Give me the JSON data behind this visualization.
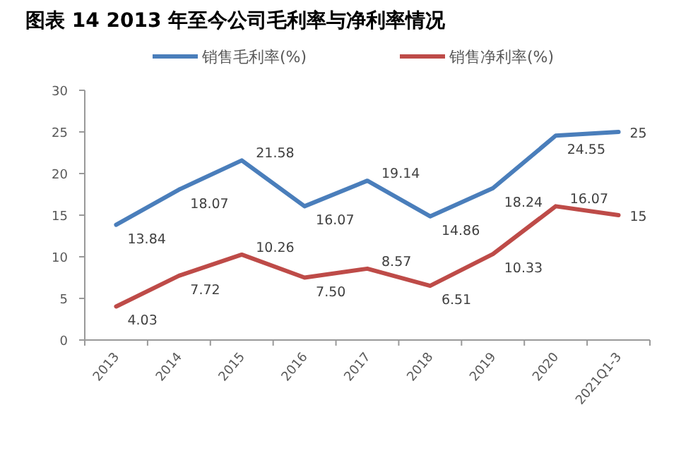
{
  "chart_data": {
    "type": "line",
    "title": "图表 14 2013 年至今公司毛利率与净利率情况",
    "categories": [
      "2013",
      "2014",
      "2015",
      "2016",
      "2017",
      "2018",
      "2019",
      "2020",
      "2021Q1-3"
    ],
    "series": [
      {
        "name": "销售毛利率(%)",
        "color": "#4a7ebb",
        "values": [
          13.84,
          18.07,
          21.58,
          16.07,
          19.14,
          14.86,
          18.24,
          24.55,
          25
        ],
        "value_labels": [
          "13.84",
          "18.07",
          "21.58",
          "16.07",
          "19.14",
          "14.86",
          "18.24",
          "24.55",
          "25"
        ]
      },
      {
        "name": "销售净利率(%)",
        "color": "#be4b48",
        "values": [
          4.03,
          7.72,
          10.26,
          7.5,
          8.57,
          6.51,
          10.33,
          16.07,
          15
        ],
        "value_labels": [
          "4.03",
          "7.72",
          "10.26",
          "7.50",
          "8.57",
          "6.51",
          "10.33",
          "16.07",
          "15"
        ]
      }
    ],
    "ylim": [
      0,
      30
    ],
    "yticks": [
      0,
      5,
      10,
      15,
      20,
      25,
      30
    ],
    "legend": "top"
  }
}
